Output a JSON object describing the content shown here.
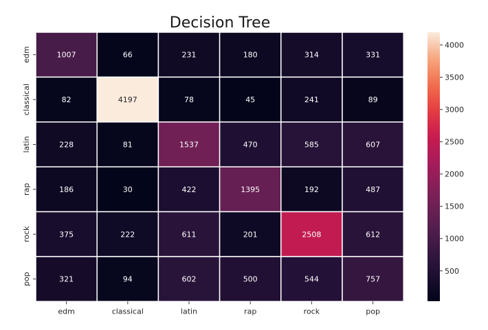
{
  "chart_data": {
    "type": "heatmap",
    "title": "Decision Tree",
    "xlabel": "",
    "ylabel": "",
    "row_labels": [
      "edm",
      "classical",
      "latin",
      "rap",
      "rock",
      "pop"
    ],
    "col_labels": [
      "edm",
      "classical",
      "latin",
      "rap",
      "rock",
      "pop"
    ],
    "values": [
      [
        1007,
        66,
        231,
        180,
        314,
        331
      ],
      [
        82,
        4197,
        78,
        45,
        241,
        89
      ],
      [
        228,
        81,
        1537,
        470,
        585,
        607
      ],
      [
        186,
        30,
        422,
        1395,
        192,
        487
      ],
      [
        375,
        222,
        611,
        201,
        2508,
        612
      ],
      [
        321,
        94,
        602,
        500,
        544,
        757
      ]
    ],
    "colorbar": {
      "colormap": "rocket",
      "range": [
        30,
        4197
      ],
      "ticks": [
        500,
        1000,
        1500,
        2000,
        2500,
        3000,
        3500,
        4000
      ],
      "tick_labels": [
        "500",
        "1000",
        "1500",
        "2000",
        "2500",
        "3000",
        "3500",
        "4000"
      ]
    },
    "cell_gridlines": true,
    "cell_gridline_color": "#ffffff",
    "annotation_text_colors": {
      "on_dark": "#ffffff",
      "on_light": "#262626"
    }
  }
}
